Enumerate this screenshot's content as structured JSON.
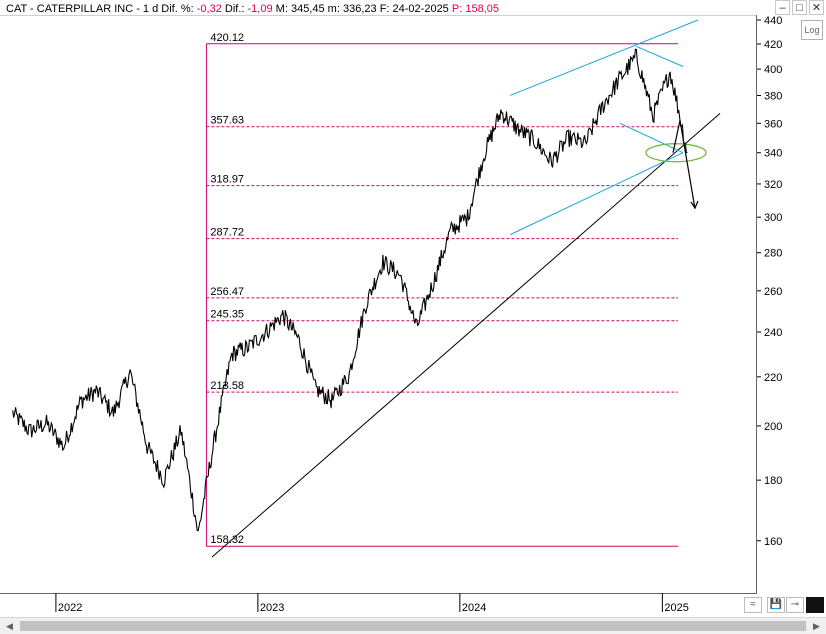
{
  "header": {
    "symbol": "CAT - CATERPILLAR INC -",
    "period": "1 d",
    "dif_pct_label": "Dif. %:",
    "dif_pct_value": "-0,32",
    "dif_label": "Dif.:",
    "dif_value": "-1,09",
    "max_label": "M:",
    "max_value": "345,45",
    "min_label": "m:",
    "min_value": "336,23",
    "date_label": "F:",
    "date_value": "24-02-2025",
    "price_label": "P:",
    "price_value": "158,05"
  },
  "window_buttons": [
    "–",
    "□",
    "✕"
  ],
  "log_button": "Log",
  "bottom_buttons": [
    "≈",
    "💾",
    "⊸"
  ],
  "colors": {
    "price": "#000000",
    "fib": "#d4006e",
    "channel": "#1aa7d6",
    "ellipse": "#6db33f",
    "trend": "#000000"
  },
  "chart_data": {
    "type": "line",
    "yscale": "log",
    "ylim": [
      150,
      440
    ],
    "yticks": [
      160,
      180,
      200,
      220,
      240,
      260,
      280,
      300,
      320,
      340,
      360,
      380,
      400,
      420,
      440
    ],
    "xticks": [
      "2022",
      "2023",
      "2024",
      "2025"
    ],
    "fib_levels": [
      "420.12",
      "357.63",
      "318.97",
      "287.72",
      "256.47",
      "245.35",
      "213.58",
      "158.32"
    ],
    "series": [
      {
        "x": [
          "2021-10",
          "2021-11",
          "2021-12",
          "2022-01",
          "2022-02",
          "2022-03",
          "2022-04",
          "2022-05",
          "2022-06",
          "2022-07",
          "2022-08",
          "2022-09",
          "2022-10",
          "2022-11",
          "2022-12",
          "2023-01",
          "2023-02",
          "2023-03",
          "2023-04",
          "2023-05",
          "2023-06",
          "2023-07",
          "2023-08",
          "2023-09",
          "2023-10",
          "2023-11",
          "2023-12",
          "2024-01",
          "2024-02",
          "2024-03",
          "2024-04",
          "2024-05",
          "2024-06",
          "2024-07",
          "2024-08",
          "2024-09",
          "2024-10",
          "2024-11",
          "2024-12",
          "2025-01",
          "2025-02"
        ],
        "values": [
          205,
          198,
          201,
          192,
          210,
          214,
          205,
          222,
          192,
          180,
          198,
          162,
          195,
          230,
          233,
          240,
          248,
          237,
          215,
          210,
          221,
          253,
          275,
          268,
          242,
          265,
          292,
          300,
          340,
          368,
          356,
          348,
          334,
          350,
          346,
          372,
          392,
          410,
          365,
          398,
          340
        ]
      }
    ]
  }
}
